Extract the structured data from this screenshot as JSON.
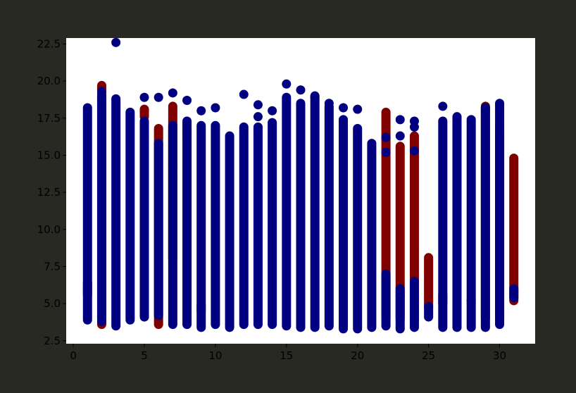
{
  "colors": {
    "figure_background": "#282923",
    "plot_background": "#ffffff",
    "blue_series": "#000080",
    "red_series": "#800000",
    "tick_label_color": "#000000"
  },
  "chart_data": {
    "type": "scatter",
    "title": "",
    "xlabel": "",
    "ylabel": "",
    "xlim": [
      -0.5,
      32.5
    ],
    "ylim": [
      2.3,
      22.9
    ],
    "grid": false,
    "legend": "none",
    "x_ticks": [
      {
        "value": 0,
        "label": "0"
      },
      {
        "value": 5,
        "label": "5"
      },
      {
        "value": 10,
        "label": "10"
      },
      {
        "value": 15,
        "label": "15"
      },
      {
        "value": 20,
        "label": "20"
      },
      {
        "value": 25,
        "label": "25"
      },
      {
        "value": 30,
        "label": "30"
      }
    ],
    "y_ticks": [
      {
        "value": 2.5,
        "label": "2.5"
      },
      {
        "value": 5.0,
        "label": "5.0"
      },
      {
        "value": 7.5,
        "label": "7.5"
      },
      {
        "value": 10.0,
        "label": "10.0"
      },
      {
        "value": 12.5,
        "label": "12.5"
      },
      {
        "value": 15.0,
        "label": "15.0"
      },
      {
        "value": 17.5,
        "label": "17.5"
      },
      {
        "value": 20.0,
        "label": "20.0"
      },
      {
        "value": 22.5,
        "label": "22.5"
      }
    ],
    "series": [
      {
        "color": "#800000",
        "columns": [
          {
            "x": 1,
            "range": [
              5.6,
              6.4
            ]
          },
          {
            "x": 2,
            "range": [
              3.6,
              19.7
            ]
          },
          {
            "x": 5,
            "range": [
              17.6,
              18.1
            ]
          },
          {
            "x": 6,
            "range": [
              3.6,
              16.8
            ]
          },
          {
            "x": 7,
            "range": [
              8.0,
              18.3
            ]
          },
          {
            "x": 8,
            "range": [
              16.4,
              16.8
            ]
          },
          {
            "x": 9,
            "range": [
              4.5,
              4.9
            ]
          },
          {
            "x": 22,
            "range": [
              4.0,
              17.9
            ]
          },
          {
            "x": 23,
            "range": [
              4.0,
              15.6
            ]
          },
          {
            "x": 24,
            "range": [
              4.0,
              16.3
            ]
          },
          {
            "x": 25,
            "range": [
              4.8,
              8.1
            ]
          },
          {
            "x": 26,
            "range": [
              5.0,
              5.6
            ]
          },
          {
            "x": 29,
            "range": [
              4.0,
              18.3
            ]
          },
          {
            "x": 30,
            "range": [
              4.0,
              16.6
            ]
          },
          {
            "x": 31,
            "range": [
              5.2,
              14.8
            ]
          }
        ],
        "points": [
          {
            "x": 2,
            "y": 18.9
          },
          {
            "x": 5,
            "y": 17.8
          },
          {
            "x": 7,
            "y": 14.4
          },
          {
            "x": 7,
            "y": 13.4
          },
          {
            "x": 28,
            "y": 5.2
          },
          {
            "x": 30,
            "y": 15.5
          }
        ]
      },
      {
        "color": "#000080",
        "columns": [
          {
            "x": 1,
            "range": [
              3.9,
              18.2
            ]
          },
          {
            "x": 2,
            "range": [
              4.0,
              19.0
            ]
          },
          {
            "x": 3,
            "range": [
              3.5,
              18.8
            ]
          },
          {
            "x": 4,
            "range": [
              3.9,
              17.9
            ]
          },
          {
            "x": 5,
            "range": [
              4.1,
              17.3
            ]
          },
          {
            "x": 6,
            "range": [
              4.2,
              15.8
            ]
          },
          {
            "x": 7,
            "range": [
              3.6,
              17.0
            ]
          },
          {
            "x": 8,
            "range": [
              3.6,
              17.3
            ]
          },
          {
            "x": 9,
            "range": [
              3.4,
              17.0
            ]
          },
          {
            "x": 10,
            "range": [
              3.6,
              17.0
            ]
          },
          {
            "x": 11,
            "range": [
              3.4,
              16.3
            ]
          },
          {
            "x": 12,
            "range": [
              3.6,
              16.9
            ]
          },
          {
            "x": 13,
            "range": [
              3.6,
              16.9
            ]
          },
          {
            "x": 14,
            "range": [
              3.6,
              17.2
            ]
          },
          {
            "x": 15,
            "range": [
              3.5,
              18.9
            ]
          },
          {
            "x": 16,
            "range": [
              3.4,
              18.5
            ]
          },
          {
            "x": 17,
            "range": [
              3.4,
              19.0
            ]
          },
          {
            "x": 18,
            "range": [
              3.5,
              18.3
            ]
          },
          {
            "x": 19,
            "range": [
              3.3,
              17.4
            ]
          },
          {
            "x": 20,
            "range": [
              3.3,
              16.8
            ]
          },
          {
            "x": 21,
            "range": [
              3.4,
              15.8
            ]
          },
          {
            "x": 22,
            "range": [
              3.5,
              7.0
            ]
          },
          {
            "x": 23,
            "range": [
              3.3,
              6.0
            ]
          },
          {
            "x": 24,
            "range": [
              3.4,
              6.5
            ]
          },
          {
            "x": 25,
            "range": [
              4.1,
              4.8
            ]
          },
          {
            "x": 26,
            "range": [
              3.4,
              17.3
            ]
          },
          {
            "x": 27,
            "range": [
              3.4,
              17.6
            ]
          },
          {
            "x": 28,
            "range": [
              3.4,
              17.4
            ]
          },
          {
            "x": 29,
            "range": [
              3.4,
              18.2
            ]
          },
          {
            "x": 30,
            "range": [
              3.6,
              18.5
            ]
          },
          {
            "x": 31,
            "range": [
              5.4,
              6.0
            ]
          }
        ],
        "points": [
          {
            "x": 3,
            "y": 22.6
          },
          {
            "x": 2,
            "y": 19.3
          },
          {
            "x": 5,
            "y": 18.9
          },
          {
            "x": 6,
            "y": 18.9
          },
          {
            "x": 7,
            "y": 19.2
          },
          {
            "x": 8,
            "y": 18.7
          },
          {
            "x": 9,
            "y": 18.0
          },
          {
            "x": 10,
            "y": 18.2
          },
          {
            "x": 12,
            "y": 19.1
          },
          {
            "x": 13,
            "y": 18.4
          },
          {
            "x": 13,
            "y": 17.6
          },
          {
            "x": 14,
            "y": 18.0
          },
          {
            "x": 15,
            "y": 19.8
          },
          {
            "x": 16,
            "y": 19.4
          },
          {
            "x": 17,
            "y": 18.9
          },
          {
            "x": 18,
            "y": 18.5
          },
          {
            "x": 19,
            "y": 18.2
          },
          {
            "x": 20,
            "y": 18.1
          },
          {
            "x": 22,
            "y": 16.2
          },
          {
            "x": 22,
            "y": 15.2
          },
          {
            "x": 23,
            "y": 17.4
          },
          {
            "x": 23,
            "y": 16.3
          },
          {
            "x": 24,
            "y": 17.3
          },
          {
            "x": 24,
            "y": 16.9
          },
          {
            "x": 24,
            "y": 15.3
          },
          {
            "x": 26,
            "y": 18.3
          },
          {
            "x": 29,
            "y": 17.9
          },
          {
            "x": 30,
            "y": 17.0
          },
          {
            "x": 30,
            "y": 8.6
          },
          {
            "x": 30,
            "y": 7.4
          },
          {
            "x": 30,
            "y": 4.8
          },
          {
            "x": 22,
            "y": 5.8
          },
          {
            "x": 23,
            "y": 5.5
          },
          {
            "x": 22,
            "y": 4.6
          },
          {
            "x": 2,
            "y": 4.9
          },
          {
            "x": 2,
            "y": 3.8
          }
        ]
      }
    ]
  }
}
